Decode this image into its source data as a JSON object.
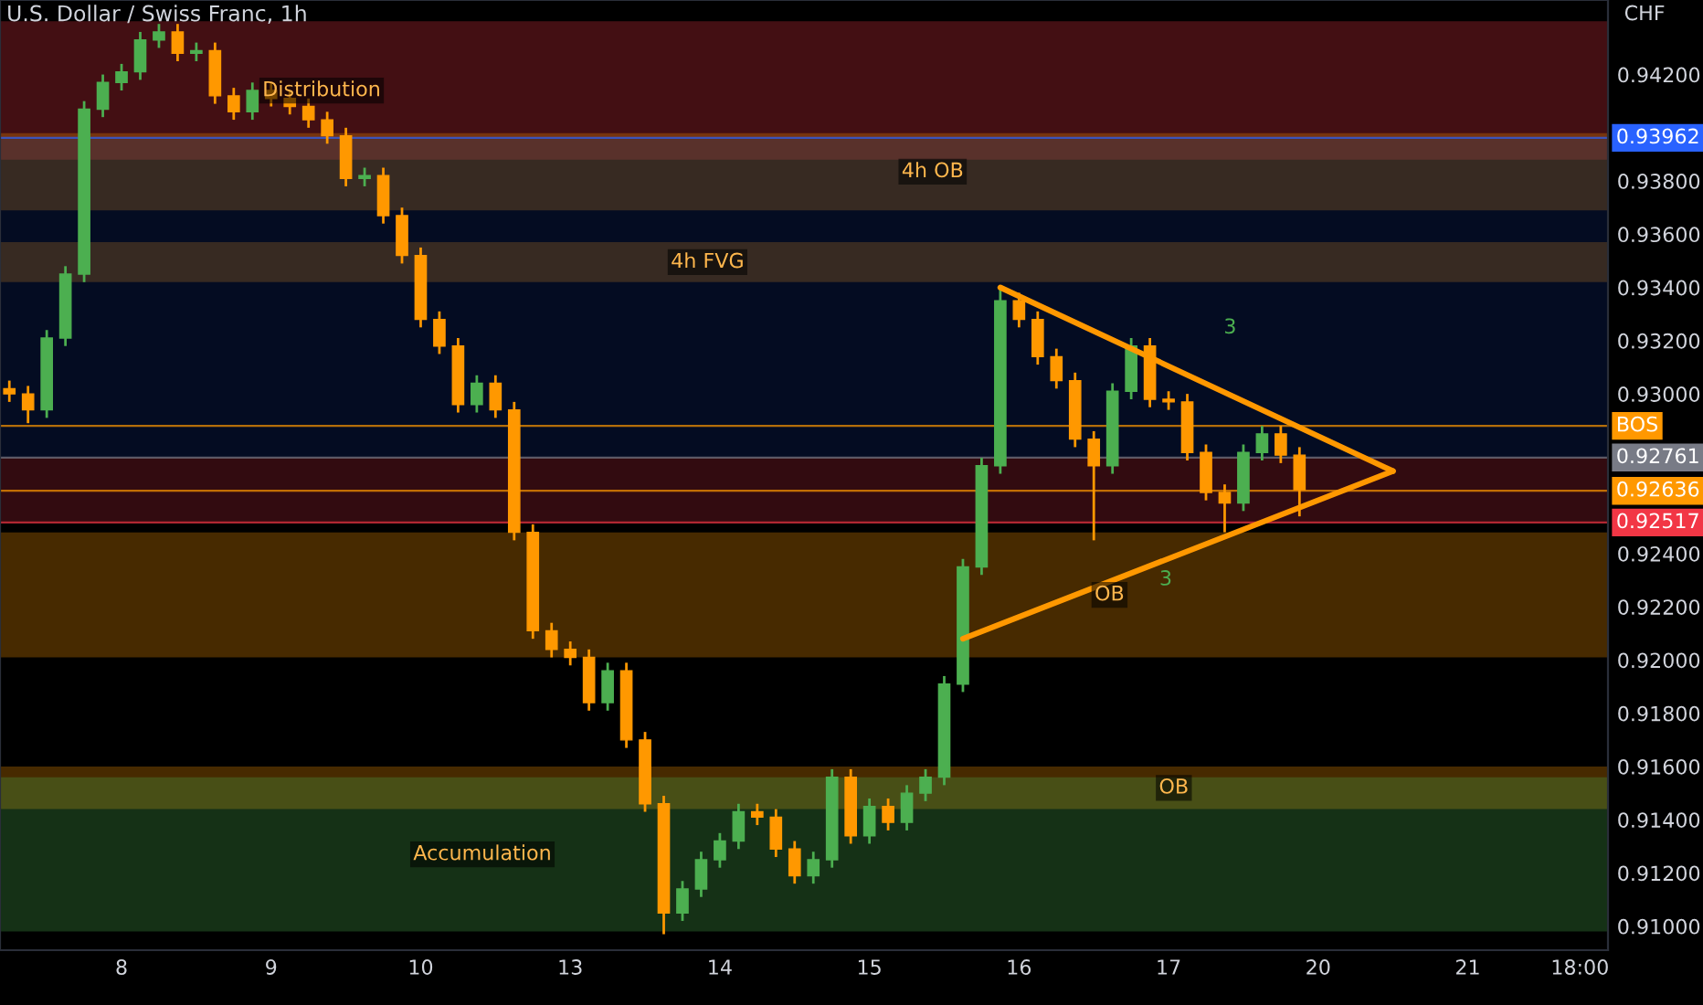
{
  "chart_data": {
    "type": "candlestick",
    "title": "U.S. Dollar / Swiss Franc, 1h",
    "ylabel": "CHF",
    "categories": [
      null,
      null,
      null,
      null,
      null,
      null,
      "8",
      null,
      null,
      null,
      null,
      null,
      null,
      null,
      "9",
      null,
      null,
      null,
      null,
      null,
      null,
      null,
      "10",
      null,
      null,
      null,
      null,
      null,
      null,
      null,
      "13",
      null,
      null,
      null,
      null,
      null,
      null,
      null,
      "14",
      null,
      null,
      null,
      null,
      null,
      null,
      null,
      "15",
      null,
      null,
      null,
      null,
      null,
      null,
      null,
      "16",
      null,
      null,
      null,
      null,
      null,
      null,
      null,
      "17",
      null,
      null,
      null,
      null,
      null,
      null,
      null,
      "20",
      null,
      null,
      null,
      null,
      null,
      null,
      null,
      "21",
      null,
      null,
      null,
      null,
      null,
      "18:00",
      null
    ],
    "ohlc": [
      [
        0.9302,
        0.9305,
        0.9297,
        0.93
      ],
      [
        0.93,
        0.9303,
        0.9289,
        0.9294
      ],
      [
        0.9294,
        0.9324,
        0.9291,
        0.9321
      ],
      [
        0.9321,
        0.9348,
        0.9318,
        0.9345
      ],
      [
        0.9345,
        0.941,
        0.9342,
        0.9407
      ],
      [
        0.9407,
        0.942,
        0.9404,
        0.9417
      ],
      [
        0.9417,
        0.9424,
        0.9414,
        0.9421
      ],
      [
        0.9421,
        0.9436,
        0.9418,
        0.9433
      ],
      [
        0.9433,
        0.9439,
        0.943,
        0.9436
      ],
      [
        0.9436,
        0.9439,
        0.9425,
        0.9428
      ],
      [
        0.9428,
        0.9432,
        0.9425,
        0.9429
      ],
      [
        0.9429,
        0.9432,
        0.9409,
        0.9412
      ],
      [
        0.9412,
        0.9415,
        0.9403,
        0.9406
      ],
      [
        0.9406,
        0.9417,
        0.9403,
        0.9414
      ],
      [
        0.9414,
        0.9417,
        0.9408,
        0.9411
      ],
      [
        0.9411,
        0.9414,
        0.9405,
        0.9408
      ],
      [
        0.9408,
        0.9411,
        0.94,
        0.9403
      ],
      [
        0.9403,
        0.9406,
        0.9394,
        0.9397
      ],
      [
        0.9397,
        0.94,
        0.9378,
        0.9381
      ],
      [
        0.9381,
        0.9385,
        0.9378,
        0.9382
      ],
      [
        0.9382,
        0.9385,
        0.9364,
        0.9367
      ],
      [
        0.9367,
        0.937,
        0.9349,
        0.9352
      ],
      [
        0.9352,
        0.9355,
        0.9325,
        0.9328
      ],
      [
        0.9328,
        0.9331,
        0.9315,
        0.9318
      ],
      [
        0.9318,
        0.9321,
        0.9293,
        0.9296
      ],
      [
        0.9296,
        0.9307,
        0.9293,
        0.9304
      ],
      [
        0.9304,
        0.9307,
        0.9291,
        0.9294
      ],
      [
        0.9294,
        0.9297,
        0.9245,
        0.9248
      ],
      [
        0.9248,
        0.9251,
        0.9208,
        0.9211
      ],
      [
        0.9211,
        0.9214,
        0.9201,
        0.9204
      ],
      [
        0.9204,
        0.9207,
        0.9198,
        0.9201
      ],
      [
        0.9201,
        0.9204,
        0.9181,
        0.9184
      ],
      [
        0.9184,
        0.9199,
        0.9181,
        0.9196
      ],
      [
        0.9196,
        0.9199,
        0.9167,
        0.917
      ],
      [
        0.917,
        0.9173,
        0.9143,
        0.9146
      ],
      [
        0.9146,
        0.9149,
        0.9097,
        0.9105
      ],
      [
        0.9105,
        0.9117,
        0.9102,
        0.9114
      ],
      [
        0.9114,
        0.9128,
        0.9111,
        0.9125
      ],
      [
        0.9125,
        0.9135,
        0.9122,
        0.9132
      ],
      [
        0.9132,
        0.9146,
        0.9129,
        0.9143
      ],
      [
        0.9143,
        0.9146,
        0.9138,
        0.9141
      ],
      [
        0.9141,
        0.9144,
        0.9126,
        0.9129
      ],
      [
        0.9129,
        0.9132,
        0.9116,
        0.9119
      ],
      [
        0.9119,
        0.9128,
        0.9116,
        0.9125
      ],
      [
        0.9125,
        0.9159,
        0.9122,
        0.9156
      ],
      [
        0.9156,
        0.9159,
        0.9131,
        0.9134
      ],
      [
        0.9134,
        0.9148,
        0.9131,
        0.9145
      ],
      [
        0.9145,
        0.9148,
        0.9136,
        0.9139
      ],
      [
        0.9139,
        0.9153,
        0.9136,
        0.915
      ],
      [
        0.915,
        0.9159,
        0.9147,
        0.9156
      ],
      [
        0.9156,
        0.9194,
        0.9153,
        0.9191
      ],
      [
        0.9191,
        0.9238,
        0.9188,
        0.9235
      ],
      [
        0.9235,
        0.9276,
        0.9232,
        0.9273
      ],
      [
        0.9273,
        0.934,
        0.927,
        0.9335
      ],
      [
        0.9335,
        0.9338,
        0.9325,
        0.9328
      ],
      [
        0.9328,
        0.9331,
        0.9311,
        0.9314
      ],
      [
        0.9314,
        0.9317,
        0.9302,
        0.9305
      ],
      [
        0.9305,
        0.9308,
        0.928,
        0.9283
      ],
      [
        0.9283,
        0.9286,
        0.9245,
        0.9273
      ],
      [
        0.9273,
        0.9304,
        0.927,
        0.9301
      ],
      [
        0.9301,
        0.9321,
        0.9298,
        0.9318
      ],
      [
        0.9318,
        0.9321,
        0.9295,
        0.9298
      ],
      [
        0.9298,
        0.9301,
        0.9294,
        0.9297
      ],
      [
        0.9297,
        0.93,
        0.9275,
        0.9278
      ],
      [
        0.9278,
        0.9281,
        0.926,
        0.9263
      ],
      [
        0.9263,
        0.9266,
        0.9248,
        0.9259
      ],
      [
        0.9259,
        0.9281,
        0.9256,
        0.9278
      ],
      [
        0.9278,
        0.9288,
        0.9275,
        0.9285
      ],
      [
        0.9285,
        0.9288,
        0.9274,
        0.9277
      ],
      [
        0.9277,
        0.928,
        0.9254,
        0.9264
      ],
      null,
      null,
      null,
      null,
      null,
      null,
      null,
      null,
      null,
      null,
      null,
      null,
      null,
      null,
      null,
      null
    ],
    "colors": [
      "#ff9800",
      "#ff9800",
      "#4caf50",
      "#4caf50",
      "#4caf50",
      "#4caf50",
      "#4caf50",
      "#4caf50",
      "#4caf50",
      "#ff9800",
      "#4caf50",
      "#ff9800",
      "#ff9800",
      "#4caf50",
      "#ff9800",
      "#ff9800",
      "#ff9800",
      "#ff9800",
      "#ff9800",
      "#4caf50",
      "#ff9800",
      "#ff9800",
      "#ff9800",
      "#ff9800",
      "#ff9800",
      "#4caf50",
      "#ff9800",
      "#ff9800",
      "#ff9800",
      "#ff9800",
      "#ff9800",
      "#ff9800",
      "#4caf50",
      "#ff9800",
      "#ff9800",
      "#ff9800",
      "#4caf50",
      "#4caf50",
      "#4caf50",
      "#4caf50",
      "#ff9800",
      "#ff9800",
      "#ff9800",
      "#4caf50",
      "#4caf50",
      "#ff9800",
      "#4caf50",
      "#ff9800",
      "#4caf50",
      "#4caf50",
      "#4caf50",
      "#4caf50",
      "#4caf50",
      "#4caf50",
      "#ff9800",
      "#ff9800",
      "#ff9800",
      "#ff9800",
      "#ff9800",
      "#4caf50",
      "#4caf50",
      "#ff9800",
      "#ff9800",
      "#ff9800",
      "#ff9800",
      "#ff9800",
      "#4caf50",
      "#4caf50",
      "#ff9800",
      "#ff9800",
      null,
      null,
      null,
      null,
      null,
      null,
      null,
      null,
      null,
      null,
      null,
      null,
      null,
      null,
      null,
      null
    ],
    "series": [
      {
        "type": "line",
        "color": "#ff9800",
        "values": [
          null,
          null,
          null,
          null,
          null,
          null,
          null,
          null,
          null,
          null,
          null,
          null,
          null,
          null,
          null,
          null,
          null,
          null,
          null,
          null,
          null,
          null,
          null,
          null,
          null,
          null,
          null,
          null,
          null,
          null,
          null,
          null,
          null,
          null,
          null,
          null,
          null,
          null,
          null,
          null,
          null,
          null,
          null,
          null,
          null,
          null,
          null,
          null,
          null,
          null,
          null,
          null,
          null,
          0.934,
          null,
          null,
          null,
          null,
          null,
          null,
          null,
          null,
          null,
          null,
          null,
          null,
          null,
          null,
          null,
          null,
          null,
          null,
          null,
          null,
          0.9271,
          null,
          null,
          null,
          null,
          null,
          null,
          null,
          null,
          null,
          null,
          null
        ]
      },
      {
        "type": "line",
        "color": "#ff9800",
        "values": [
          null,
          null,
          null,
          null,
          null,
          null,
          null,
          null,
          null,
          null,
          null,
          null,
          null,
          null,
          null,
          null,
          null,
          null,
          null,
          null,
          null,
          null,
          null,
          null,
          null,
          null,
          null,
          null,
          null,
          null,
          null,
          null,
          null,
          null,
          null,
          null,
          null,
          null,
          null,
          null,
          null,
          null,
          null,
          null,
          null,
          null,
          null,
          null,
          null,
          null,
          null,
          0.9208,
          null,
          null,
          null,
          null,
          null,
          null,
          null,
          null,
          null,
          null,
          null,
          null,
          null,
          null,
          null,
          null,
          null,
          null,
          null,
          null,
          null,
          null,
          0.9271,
          null,
          null,
          null,
          null,
          null,
          null,
          null,
          null,
          null,
          null,
          null
        ]
      }
    ],
    "ylim": [
      0.9091,
      0.9448
    ],
    "yticks": [
      {
        "value": 0.91,
        "label": "0.91000"
      },
      {
        "value": 0.912,
        "label": "0.91200"
      },
      {
        "value": 0.914,
        "label": "0.91400"
      },
      {
        "value": 0.916,
        "label": "0.91600"
      },
      {
        "value": 0.918,
        "label": "0.91800"
      },
      {
        "value": 0.92,
        "label": "0.92000"
      },
      {
        "value": 0.922,
        "label": "0.92200"
      },
      {
        "value": 0.924,
        "label": "0.92400"
      },
      {
        "value": 0.93,
        "label": "0.93000"
      },
      {
        "value": 0.932,
        "label": "0.93200"
      },
      {
        "value": 0.934,
        "label": "0.93400"
      },
      {
        "value": 0.936,
        "label": "0.93600"
      },
      {
        "value": 0.938,
        "label": "0.93800"
      },
      {
        "value": 0.942,
        "label": "0.94200"
      }
    ],
    "ref_lines": [
      {
        "axis": "y",
        "value": 0.9288,
        "label": "BOS",
        "color": "#ff9800"
      },
      {
        "axis": "y",
        "value": 0.93962,
        "label": "0.93962",
        "color": "#2962ff"
      },
      {
        "axis": "y",
        "value": 0.92761,
        "label": "0.92761",
        "color": "#787b86"
      },
      {
        "axis": "y",
        "value": 0.92636,
        "label": "0.92636",
        "color": "#ff9800"
      },
      {
        "axis": "y",
        "value": 0.92517,
        "label": "0.92517",
        "color": "#f23645"
      }
    ],
    "bands": [
      {
        "axis": "y",
        "from": 0.9388,
        "to": 0.944,
        "color": "#f23645",
        "label": "Distribution"
      },
      {
        "axis": "y",
        "from": 0.9369,
        "to": 0.9398,
        "color": "#ff9800",
        "label": "4h OB"
      },
      {
        "axis": "y",
        "from": 0.9342,
        "to": 0.9357,
        "color": "#ff9800",
        "label": "4h FVG"
      },
      {
        "axis": "y",
        "from": 0.9201,
        "to": 0.9248,
        "color": "#ff9800",
        "label": "OB"
      },
      {
        "axis": "y",
        "from": 0.9144,
        "to": 0.916,
        "color": "#ff9800",
        "label": "OB"
      },
      {
        "axis": "y",
        "from": 0.9098,
        "to": 0.9156,
        "color": "#4caf50",
        "label": "Accumulation"
      },
      {
        "axis": "y",
        "from": 0.92761,
        "to": 0.93962,
        "color": "#0d2a7a"
      },
      {
        "axis": "y",
        "from": 0.92517,
        "to": 0.92761,
        "color": "#b2283a"
      }
    ],
    "annotations": [
      "3",
      "3"
    ],
    "grid": false
  }
}
